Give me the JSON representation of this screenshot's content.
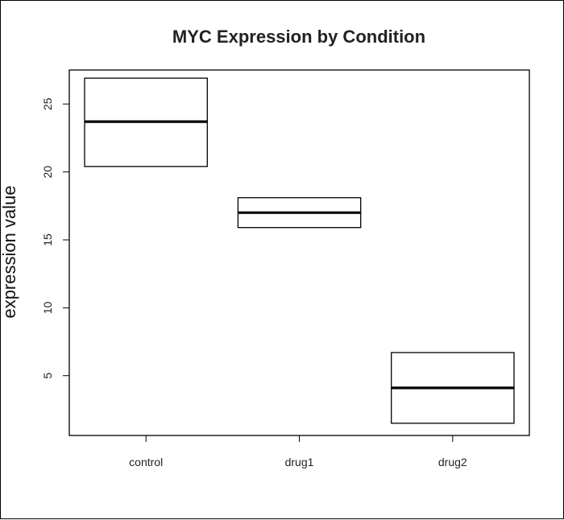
{
  "chart_data": {
    "type": "boxplot",
    "title": "MYC Expression by Condition",
    "xlabel": "",
    "ylabel": "expression value",
    "categories": [
      "control",
      "drug1",
      "drug2"
    ],
    "boxes": [
      {
        "category": "control",
        "q1": 20.4,
        "median": 23.7,
        "q3": 26.9
      },
      {
        "category": "drug1",
        "q1": 15.9,
        "median": 17.0,
        "q3": 18.1
      },
      {
        "category": "drug2",
        "q1": 1.5,
        "median": 4.1,
        "q3": 6.7
      }
    ],
    "y_ticks": [
      5,
      10,
      15,
      20,
      25
    ],
    "ylim": [
      0.6,
      27.5
    ],
    "grid": false,
    "legend": "none"
  }
}
